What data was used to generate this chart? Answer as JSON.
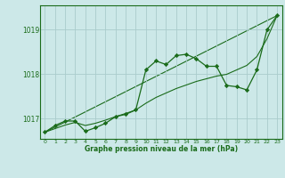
{
  "title": "Graphe pression niveau de la mer (hPa)",
  "background_color": "#cce8e8",
  "plot_bg_color": "#cce8e8",
  "grid_color": "#aacccc",
  "line_color": "#1a6b1a",
  "xlim": [
    -0.5,
    23.5
  ],
  "ylim": [
    1016.55,
    1019.55
  ],
  "yticks": [
    1017,
    1018,
    1019
  ],
  "xticks": [
    0,
    1,
    2,
    3,
    4,
    5,
    6,
    7,
    8,
    9,
    10,
    11,
    12,
    13,
    14,
    15,
    16,
    17,
    18,
    19,
    20,
    21,
    22,
    23
  ],
  "main_x": [
    0,
    1,
    2,
    3,
    4,
    5,
    6,
    7,
    8,
    9,
    10,
    11,
    12,
    13,
    14,
    15,
    16,
    17,
    18,
    19,
    20,
    21,
    22,
    23
  ],
  "main_y": [
    1016.7,
    1016.85,
    1016.95,
    1016.95,
    1016.72,
    1016.8,
    1016.9,
    1017.05,
    1017.1,
    1017.2,
    1018.1,
    1018.3,
    1018.22,
    1018.42,
    1018.45,
    1018.35,
    1018.18,
    1018.18,
    1017.75,
    1017.72,
    1017.65,
    1018.1,
    1019.0,
    1019.32
  ],
  "trend1_x": [
    0,
    23
  ],
  "trend1_y": [
    1016.7,
    1019.32
  ],
  "smooth_x": [
    0,
    1,
    2,
    3,
    4,
    5,
    6,
    7,
    8,
    9,
    10,
    11,
    12,
    13,
    14,
    15,
    16,
    17,
    18,
    19,
    20,
    21,
    22,
    23
  ],
  "smooth_y": [
    1016.7,
    1016.78,
    1016.86,
    1016.92,
    1016.85,
    1016.9,
    1016.97,
    1017.05,
    1017.12,
    1017.2,
    1017.35,
    1017.48,
    1017.58,
    1017.68,
    1017.76,
    1017.84,
    1017.9,
    1017.96,
    1018.0,
    1018.1,
    1018.2,
    1018.4,
    1018.8,
    1019.32
  ]
}
